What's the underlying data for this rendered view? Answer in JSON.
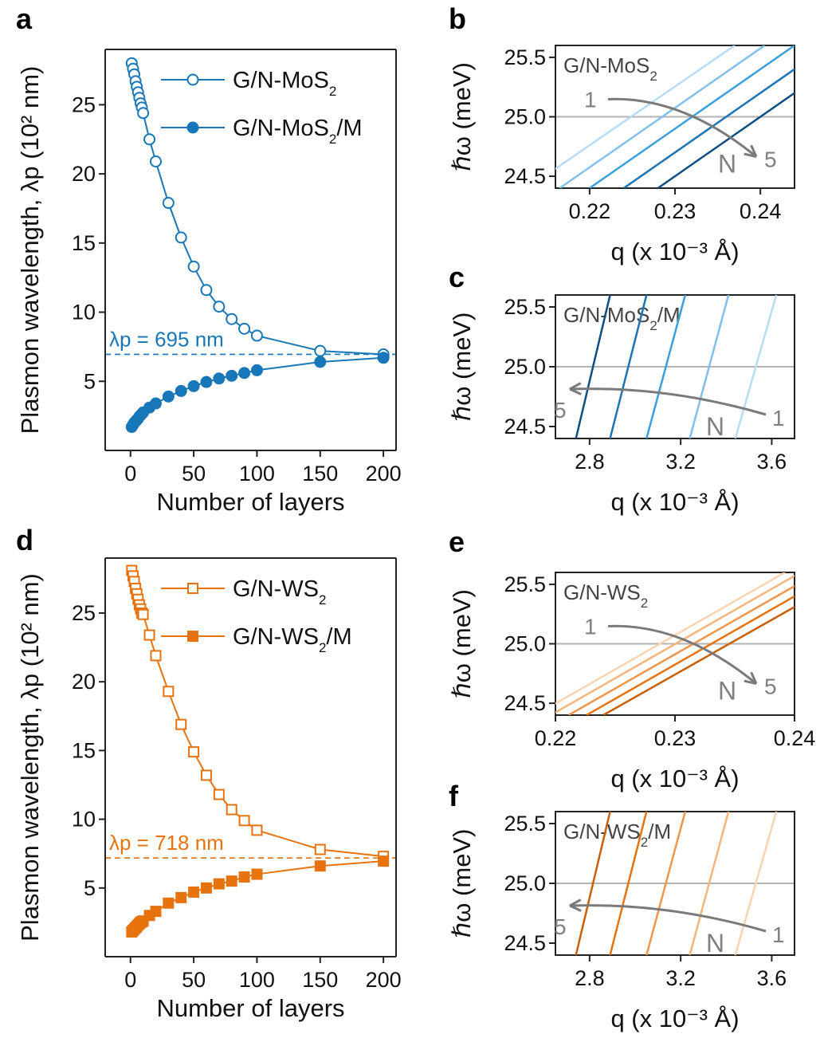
{
  "chart_data": [
    {
      "panel": "a",
      "type": "line",
      "xlabel": "Number of layers",
      "ylabel": "Plasmon wavelength, λp (10² nm)",
      "xlim": [
        -20,
        210
      ],
      "ylim": [
        0,
        29
      ],
      "xticks": [
        0,
        50,
        100,
        150,
        200
      ],
      "yticks": [
        5,
        10,
        15,
        20,
        25
      ],
      "color": "#1777b8",
      "annotation": "λp = 695 nm",
      "ref_line": 6.95,
      "series": [
        {
          "name": "G/N-MoS2",
          "marker": "circle-open",
          "x": [
            1,
            2,
            3,
            4,
            5,
            6,
            7,
            8,
            9,
            10,
            15,
            20,
            30,
            40,
            50,
            60,
            70,
            80,
            90,
            100,
            150,
            200
          ],
          "y": [
            28.0,
            27.6,
            27.2,
            26.7,
            26.3,
            25.9,
            25.5,
            25.1,
            24.8,
            24.4,
            22.5,
            20.9,
            17.9,
            15.4,
            13.3,
            11.6,
            10.4,
            9.5,
            8.8,
            8.3,
            7.2,
            6.95
          ]
        },
        {
          "name": "G/N-MoS2/M",
          "marker": "circle-filled",
          "x": [
            1,
            2,
            3,
            4,
            5,
            6,
            7,
            8,
            9,
            10,
            15,
            20,
            30,
            40,
            50,
            60,
            70,
            80,
            90,
            100,
            150,
            200
          ],
          "y": [
            1.7,
            1.85,
            2.0,
            2.1,
            2.2,
            2.3,
            2.45,
            2.55,
            2.65,
            2.75,
            3.1,
            3.4,
            3.9,
            4.3,
            4.65,
            4.95,
            5.2,
            5.4,
            5.6,
            5.8,
            6.4,
            6.7
          ]
        }
      ]
    },
    {
      "panel": "b",
      "type": "line",
      "xlabel": "q (x 10⁻³ Å)",
      "ylabel": "ℏω (meV)",
      "xlim": [
        0.216,
        0.244
      ],
      "ylim": [
        24.4,
        25.6
      ],
      "xticks": [
        "0.22",
        "0.23",
        "0.24"
      ],
      "yticks": [
        "24.5",
        "25.0",
        "25.5"
      ],
      "label": "G/N-MoS2",
      "ref_line": 25.0,
      "colors": [
        "#b7dcf5",
        "#7fc1ec",
        "#3a9fdd",
        "#1b74b4",
        "#0d4f82"
      ],
      "series": [
        {
          "name": "1",
          "x0": 0.2127,
          "x1": 0.237
        },
        {
          "name": "2",
          "x0": 0.2165,
          "x1": 0.2405
        },
        {
          "name": "3",
          "x0": 0.22,
          "x1": 0.244
        },
        {
          "name": "4",
          "x0": 0.224,
          "x1": 0.248
        },
        {
          "name": "5",
          "x0": 0.228,
          "x1": 0.252
        }
      ],
      "arrow": {
        "from": "1",
        "to": "5",
        "mid": "N"
      }
    },
    {
      "panel": "c",
      "type": "line",
      "xlabel": "q (x 10⁻³ Å)",
      "ylabel": "ℏω (meV)",
      "xlim": [
        2.65,
        3.7
      ],
      "ylim": [
        24.4,
        25.6
      ],
      "xticks": [
        "2.8",
        "3.2",
        "3.6"
      ],
      "yticks": [
        "24.5",
        "25.0",
        "25.5"
      ],
      "label": "G/N-MoS2/M",
      "ref_line": 25.0,
      "colors": [
        "#b7dcf5",
        "#7fc1ec",
        "#3a9fdd",
        "#1b74b4",
        "#0d4f82"
      ],
      "series": [
        {
          "name": "1",
          "x0": 3.44,
          "x1": 3.62
        },
        {
          "name": "2",
          "x0": 3.24,
          "x1": 3.41
        },
        {
          "name": "3",
          "x0": 3.05,
          "x1": 3.22
        },
        {
          "name": "4",
          "x0": 2.89,
          "x1": 3.05
        },
        {
          "name": "5",
          "x0": 2.74,
          "x1": 2.89
        }
      ],
      "arrow": {
        "from": "1",
        "to": "5",
        "mid": "N"
      }
    },
    {
      "panel": "d",
      "type": "line",
      "xlabel": "Number of layers",
      "ylabel": "Plasmon wavelength, λp (10² nm)",
      "xlim": [
        -20,
        210
      ],
      "ylim": [
        0,
        29
      ],
      "xticks": [
        0,
        50,
        100,
        150,
        200
      ],
      "yticks": [
        5,
        10,
        15,
        20,
        25
      ],
      "color": "#e6730d",
      "annotation": "λp = 718 nm",
      "ref_line": 7.18,
      "series": [
        {
          "name": "G/N-WS2",
          "marker": "square-open",
          "x": [
            1,
            2,
            3,
            4,
            5,
            6,
            7,
            8,
            9,
            10,
            15,
            20,
            30,
            40,
            50,
            60,
            70,
            80,
            90,
            100,
            150,
            200
          ],
          "y": [
            28.1,
            27.7,
            27.3,
            26.8,
            26.4,
            26.0,
            25.6,
            25.3,
            25.0,
            24.9,
            23.4,
            21.9,
            19.3,
            16.9,
            14.9,
            13.2,
            11.8,
            10.7,
            9.9,
            9.2,
            7.8,
            7.3
          ]
        },
        {
          "name": "G/N-WS2/M",
          "marker": "square-filled",
          "x": [
            1,
            2,
            3,
            4,
            5,
            6,
            7,
            8,
            9,
            10,
            15,
            20,
            30,
            40,
            50,
            60,
            70,
            80,
            90,
            100,
            150,
            200
          ],
          "y": [
            1.8,
            1.9,
            2.0,
            2.1,
            2.2,
            2.3,
            2.4,
            2.5,
            2.55,
            2.6,
            3.0,
            3.3,
            3.9,
            4.3,
            4.7,
            5.0,
            5.3,
            5.5,
            5.8,
            6.0,
            6.6,
            6.95
          ]
        }
      ]
    },
    {
      "panel": "e",
      "type": "line",
      "xlabel": "q (x 10⁻³ Å)",
      "ylabel": "ℏω (meV)",
      "xlim": [
        0.22,
        0.24
      ],
      "ylim": [
        24.4,
        25.6
      ],
      "xticks": [
        "0.22",
        "0.23",
        "0.24"
      ],
      "yticks": [
        "24.5",
        "25.0",
        "25.5"
      ],
      "label": "G/N-WS2",
      "ref_line": 25.0,
      "colors": [
        "#f9d4ae",
        "#f5b47a",
        "#f0954a",
        "#e6730d",
        "#c95f05"
      ],
      "series": [
        {
          "name": "1",
          "x0": 0.2183,
          "x1": 0.2392
        },
        {
          "name": "2",
          "x0": 0.2196,
          "x1": 0.2405
        },
        {
          "name": "3",
          "x0": 0.2211,
          "x1": 0.242
        },
        {
          "name": "4",
          "x0": 0.2226,
          "x1": 0.2435
        },
        {
          "name": "5",
          "x0": 0.224,
          "x1": 0.2451
        }
      ],
      "arrow": {
        "from": "1",
        "to": "5",
        "mid": "N"
      }
    },
    {
      "panel": "f",
      "type": "line",
      "xlabel": "q (x 10⁻³ Å)",
      "ylabel": "ℏω (meV)",
      "xlim": [
        2.65,
        3.7
      ],
      "ylim": [
        24.4,
        25.6
      ],
      "xticks": [
        "2.8",
        "3.2",
        "3.6"
      ],
      "yticks": [
        "24.5",
        "25.0",
        "25.5"
      ],
      "label": "G/N-WS2/M",
      "ref_line": 25.0,
      "colors": [
        "#f9d4ae",
        "#f5b47a",
        "#f0954a",
        "#e6730d",
        "#c95f05"
      ],
      "series": [
        {
          "name": "1",
          "x0": 3.44,
          "x1": 3.62
        },
        {
          "name": "2",
          "x0": 3.24,
          "x1": 3.41
        },
        {
          "name": "3",
          "x0": 3.05,
          "x1": 3.22
        },
        {
          "name": "4",
          "x0": 2.89,
          "x1": 3.05
        },
        {
          "name": "5",
          "x0": 2.74,
          "x1": 2.89
        }
      ],
      "arrow": {
        "from": "1",
        "to": "5",
        "mid": "N"
      }
    }
  ]
}
